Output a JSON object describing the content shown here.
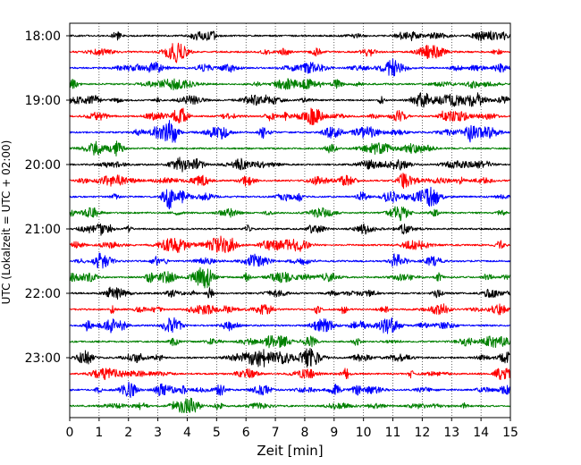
{
  "chart_data": {
    "type": "line",
    "title": "",
    "xlabel": "Zeit  [min]",
    "ylabel": "UTC (Lokalzeit = UTC + 02:00)",
    "xlim": [
      0,
      15
    ],
    "x_ticks": [
      "0",
      "1",
      "2",
      "3",
      "4",
      "5",
      "6",
      "7",
      "8",
      "9",
      "10",
      "11",
      "12",
      "13",
      "14",
      "15"
    ],
    "y_tick_labels": [
      "18:00",
      "19:00",
      "20:00",
      "21:00",
      "22:00",
      "23:00"
    ],
    "row_interval_minutes": 15,
    "row_start": "18:00",
    "row_count": 24,
    "vertical_grid": true,
    "grid_style": "dotted",
    "series_colors": [
      "#000000",
      "#ff0000",
      "#0000ff",
      "#008000"
    ],
    "rows": [
      {
        "time": "18:00",
        "color": "#000000"
      },
      {
        "time": "18:15",
        "color": "#ff0000"
      },
      {
        "time": "18:30",
        "color": "#0000ff"
      },
      {
        "time": "18:45",
        "color": "#008000"
      },
      {
        "time": "19:00",
        "color": "#000000"
      },
      {
        "time": "19:15",
        "color": "#ff0000"
      },
      {
        "time": "19:30",
        "color": "#0000ff"
      },
      {
        "time": "19:45",
        "color": "#008000"
      },
      {
        "time": "20:00",
        "color": "#000000"
      },
      {
        "time": "20:15",
        "color": "#ff0000"
      },
      {
        "time": "20:30",
        "color": "#0000ff"
      },
      {
        "time": "20:45",
        "color": "#008000"
      },
      {
        "time": "21:00",
        "color": "#000000"
      },
      {
        "time": "21:15",
        "color": "#ff0000"
      },
      {
        "time": "21:30",
        "color": "#0000ff"
      },
      {
        "time": "21:45",
        "color": "#008000"
      },
      {
        "time": "22:00",
        "color": "#000000"
      },
      {
        "time": "22:15",
        "color": "#ff0000"
      },
      {
        "time": "22:30",
        "color": "#0000ff"
      },
      {
        "time": "22:45",
        "color": "#008000"
      },
      {
        "time": "23:00",
        "color": "#000000"
      },
      {
        "time": "23:15",
        "color": "#ff0000"
      },
      {
        "time": "23:30",
        "color": "#0000ff"
      },
      {
        "time": "23:45",
        "color": "#008000"
      }
    ]
  }
}
